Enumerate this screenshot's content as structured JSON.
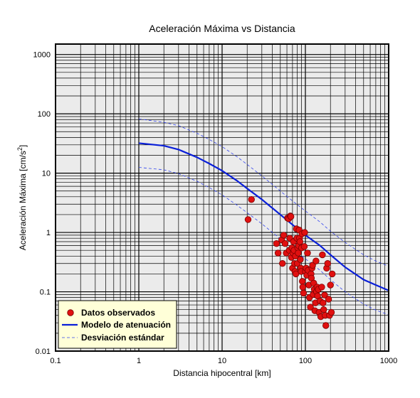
{
  "chart_data": {
    "type": "scatter",
    "title": "Aceleración Máxima vs Distancia",
    "xlabel": "Distancia hipocentral [km]",
    "ylabel": "Aceleración Máxima [cm/s²]",
    "ylabel_main": "Aceleración Máxima [cm/s",
    "ylabel_sup": "2",
    "ylabel_end": "]",
    "x_scale": "log",
    "y_scale": "log",
    "xlim": [
      0.1,
      1000
    ],
    "ylim": [
      0.01,
      1500
    ],
    "grid": true,
    "legend_position": "bottom-left",
    "x_ticks": [
      {
        "value": 0.1,
        "label": "0.1"
      },
      {
        "value": 1,
        "label": "1"
      },
      {
        "value": 10,
        "label": "10"
      },
      {
        "value": 100,
        "label": "100"
      },
      {
        "value": 1000,
        "label": "1000"
      }
    ],
    "y_ticks": [
      {
        "value": 0.01,
        "label": "0.01"
      },
      {
        "value": 0.1,
        "label": "0.1"
      },
      {
        "value": 1,
        "label": "1"
      },
      {
        "value": 10,
        "label": "10"
      },
      {
        "value": 100,
        "label": "100"
      },
      {
        "value": 1000,
        "label": "1000"
      }
    ],
    "colors": {
      "plot_background": "#ebebeb",
      "grid": "#000000",
      "points_fill": "#e01010",
      "points_edge": "#7a0000",
      "model": "#0a1fd8",
      "deviation": "#3344ee",
      "legend_background": "#ffffd8"
    },
    "series": [
      {
        "name": "Datos observados",
        "kind": "scatter",
        "points": [
          [
            20.5,
            1.65
          ],
          [
            22.5,
            3.6
          ],
          [
            45,
            0.65
          ],
          [
            47,
            0.45
          ],
          [
            52,
            0.75
          ],
          [
            53,
            0.3
          ],
          [
            55,
            0.9
          ],
          [
            57,
            0.65
          ],
          [
            59,
            0.45
          ],
          [
            61,
            1.75
          ],
          [
            63,
            1.7
          ],
          [
            64,
            0.5
          ],
          [
            65,
            0.8
          ],
          [
            66,
            1.9
          ],
          [
            67,
            1.85
          ],
          [
            68,
            0.38
          ],
          [
            69,
            0.55
          ],
          [
            70,
            0.25
          ],
          [
            71,
            0.45
          ],
          [
            72,
            0.7
          ],
          [
            73,
            0.5
          ],
          [
            74,
            0.3
          ],
          [
            75,
            0.22
          ],
          [
            76,
            0.4
          ],
          [
            77,
            0.2
          ],
          [
            78,
            1.15
          ],
          [
            79,
            0.8
          ],
          [
            80,
            0.3
          ],
          [
            81,
            0.55
          ],
          [
            82,
            0.45
          ],
          [
            83,
            0.6
          ],
          [
            84,
            1.1
          ],
          [
            85,
            0.8
          ],
          [
            86,
            0.7
          ],
          [
            87,
            0.35
          ],
          [
            88,
            0.25
          ],
          [
            89,
            0.22
          ],
          [
            90,
            0.55
          ],
          [
            91,
            0.95
          ],
          [
            92,
            0.15
          ],
          [
            93,
            0.12
          ],
          [
            95,
            0.095
          ],
          [
            97,
            0.58
          ],
          [
            98,
            1.0
          ],
          [
            100,
            0.22
          ],
          [
            102,
            0.25
          ],
          [
            104,
            0.19
          ],
          [
            106,
            0.45
          ],
          [
            108,
            0.23
          ],
          [
            110,
            0.13
          ],
          [
            112,
            0.08
          ],
          [
            115,
            0.055
          ],
          [
            117,
            0.2
          ],
          [
            118,
            0.17
          ],
          [
            120,
            0.25
          ],
          [
            122,
            0.28
          ],
          [
            124,
            0.09
          ],
          [
            126,
            0.14
          ],
          [
            128,
            0.11
          ],
          [
            130,
            0.048
          ],
          [
            132,
            0.065
          ],
          [
            134,
            0.33
          ],
          [
            136,
            0.1
          ],
          [
            138,
            0.12
          ],
          [
            140,
            0.085
          ],
          [
            143,
            0.11
          ],
          [
            146,
            0.045
          ],
          [
            150,
            0.07
          ],
          [
            153,
            0.038
          ],
          [
            157,
            0.12
          ],
          [
            160,
            0.42
          ],
          [
            163,
            0.065
          ],
          [
            166,
            0.05
          ],
          [
            170,
            0.088
          ],
          [
            173,
            0.04
          ],
          [
            176,
            0.027
          ],
          [
            180,
            0.25
          ],
          [
            185,
            0.3
          ],
          [
            190,
            0.075
          ],
          [
            195,
            0.04
          ],
          [
            200,
            0.13
          ],
          [
            205,
            0.045
          ],
          [
            210,
            0.2
          ]
        ]
      },
      {
        "name": "Modelo de atenuación",
        "kind": "line",
        "points": [
          [
            1,
            32
          ],
          [
            2,
            29
          ],
          [
            3,
            25
          ],
          [
            5,
            18.5
          ],
          [
            7,
            14.5
          ],
          [
            10,
            11
          ],
          [
            15,
            7.5
          ],
          [
            20,
            5.5
          ],
          [
            30,
            3.6
          ],
          [
            50,
            2.0
          ],
          [
            70,
            1.35
          ],
          [
            100,
            0.9
          ],
          [
            150,
            0.6
          ],
          [
            200,
            0.42
          ],
          [
            300,
            0.26
          ],
          [
            500,
            0.16
          ],
          [
            700,
            0.13
          ],
          [
            1000,
            0.105
          ]
        ]
      },
      {
        "name": "Desviación estándar",
        "kind": "dashed",
        "upper": [
          [
            1,
            82
          ],
          [
            2,
            72
          ],
          [
            3,
            63
          ],
          [
            5,
            47
          ],
          [
            7,
            37
          ],
          [
            10,
            28
          ],
          [
            15,
            19
          ],
          [
            20,
            14
          ],
          [
            30,
            9
          ],
          [
            50,
            5
          ],
          [
            70,
            3.4
          ],
          [
            100,
            2.3
          ],
          [
            150,
            1.5
          ],
          [
            200,
            1.05
          ],
          [
            300,
            0.68
          ],
          [
            500,
            0.42
          ],
          [
            700,
            0.33
          ],
          [
            1000,
            0.27
          ]
        ],
        "lower": [
          [
            1,
            12.5
          ],
          [
            2,
            11.4
          ],
          [
            3,
            9.8
          ],
          [
            5,
            7.3
          ],
          [
            7,
            5.7
          ],
          [
            10,
            4.3
          ],
          [
            15,
            2.9
          ],
          [
            20,
            2.15
          ],
          [
            30,
            1.4
          ],
          [
            50,
            0.78
          ],
          [
            70,
            0.53
          ],
          [
            100,
            0.36
          ],
          [
            150,
            0.23
          ],
          [
            200,
            0.16
          ],
          [
            300,
            0.1
          ],
          [
            500,
            0.062
          ],
          [
            700,
            0.049
          ],
          [
            1000,
            0.041
          ]
        ]
      }
    ]
  }
}
